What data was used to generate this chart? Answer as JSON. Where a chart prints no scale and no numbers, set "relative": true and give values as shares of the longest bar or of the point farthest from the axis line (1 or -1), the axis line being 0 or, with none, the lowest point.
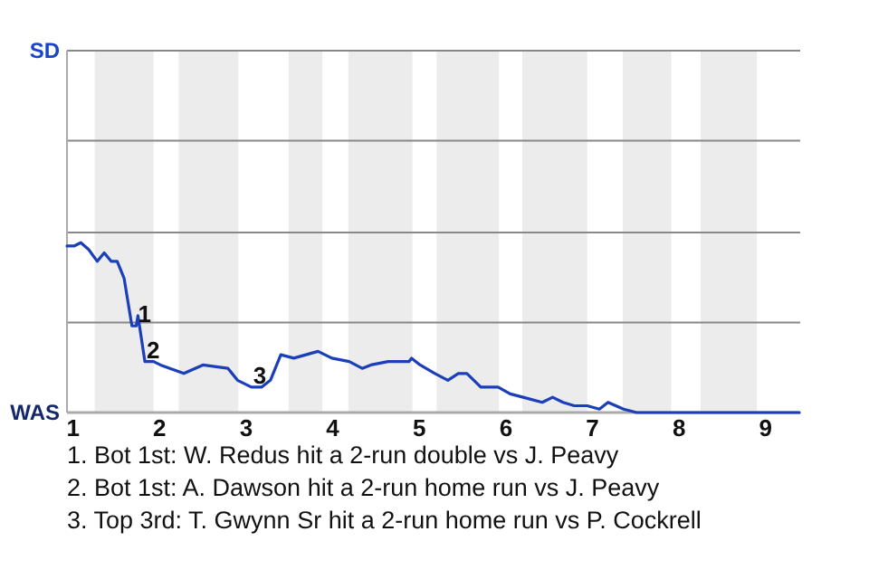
{
  "chart_data": {
    "type": "line",
    "relative": true,
    "xlim": [
      0.93,
      9.4
    ],
    "xticks": [
      1,
      2,
      3,
      4,
      5,
      6,
      7,
      8,
      9
    ],
    "marker": "none",
    "line_style": "solid",
    "ref_lines": [
      {
        "axis": "y",
        "value": 0.53,
        "color": "#888888"
      },
      {
        "axis": "y",
        "value": 1.06,
        "color": "#888888"
      },
      {
        "axis": "y",
        "value": 1.6,
        "color": "#888888"
      },
      {
        "axis": "y",
        "value": 2.13,
        "color": "#888888"
      }
    ],
    "x": [
      0.93,
      1.01,
      1.09,
      1.18,
      1.28,
      1.36,
      1.44,
      1.51,
      1.59,
      1.68,
      1.73,
      1.75,
      1.83,
      1.93,
      2.01,
      2.28,
      2.5,
      2.79,
      2.9,
      3.06,
      3.18,
      3.28,
      3.4,
      3.55,
      3.83,
      3.99,
      4.19,
      4.34,
      4.44,
      4.64,
      4.88,
      4.91,
      5.01,
      5.18,
      5.33,
      5.45,
      5.55,
      5.71,
      5.91,
      6.05,
      6.2,
      6.42,
      6.54,
      6.66,
      6.79,
      6.94,
      7.08,
      7.18,
      7.36,
      7.51,
      7.9,
      9.39
    ],
    "series": [
      {
        "color": "#1a3fb8",
        "values": [
          0.98,
          0.98,
          1,
          0.96,
          0.89,
          0.94,
          0.89,
          0.89,
          0.79,
          0.51,
          0.51,
          0.57,
          0.3,
          0.3,
          0.28,
          0.23,
          0.28,
          0.26,
          0.19,
          0.15,
          0.15,
          0.19,
          0.34,
          0.32,
          0.36,
          0.32,
          0.3,
          0.26,
          0.28,
          0.3,
          0.3,
          0.32,
          0.28,
          0.23,
          0.19,
          0.23,
          0.23,
          0.15,
          0.15,
          0.11,
          0.09,
          0.06,
          0.09,
          0.06,
          0.04,
          0.04,
          0.02,
          0.06,
          0.02,
          0,
          0,
          0
        ]
      }
    ],
    "bands": [
      {
        "axis": "x",
        "from": 1.25,
        "to": 1.93,
        "color": "#ececec"
      },
      {
        "axis": "x",
        "from": 2.22,
        "to": 2.91,
        "color": "#ececec"
      },
      {
        "axis": "x",
        "from": 3.49,
        "to": 3.88,
        "color": "#ececec"
      },
      {
        "axis": "x",
        "from": 4.18,
        "to": 4.92,
        "color": "#ececec"
      },
      {
        "axis": "x",
        "from": 5.2,
        "to": 5.92,
        "color": "#ececec"
      },
      {
        "axis": "x",
        "from": 6.19,
        "to": 6.94,
        "color": "#ececec"
      },
      {
        "axis": "x",
        "from": 7.35,
        "to": 7.91,
        "color": "#ececec"
      },
      {
        "axis": "x",
        "from": 8.25,
        "to": 8.9,
        "color": "#ececec"
      }
    ],
    "annotations": [
      "SD",
      "WAS",
      {
        "text": "1",
        "x": 1.73,
        "y": 0.51
      },
      {
        "text": "2",
        "x": 1.83,
        "y": 0.3
      },
      {
        "text": "3",
        "x": 3.06,
        "y": 0.15
      },
      "1. Bot 1st: W. Redus hit a 2-run double vs J. Peavy",
      "2. Bot 1st: A. Dawson hit a 2-run home run vs J. Peavy",
      "3. Top 3rd: T. Gwynn Sr hit a 2-run home run vs P. Cockrell"
    ]
  }
}
